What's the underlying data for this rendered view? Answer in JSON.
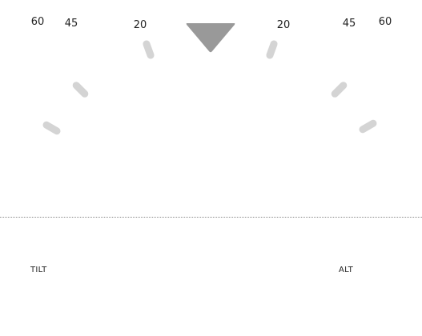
{
  "gauge": {
    "left_ticks": [
      "60",
      "45",
      "20"
    ],
    "right_ticks": [
      "20",
      "45",
      "60"
    ],
    "pointer_color": "#999999",
    "tick_color": "#d4d4d4"
  },
  "modes": {
    "left": "TILT",
    "right": "ALT"
  }
}
